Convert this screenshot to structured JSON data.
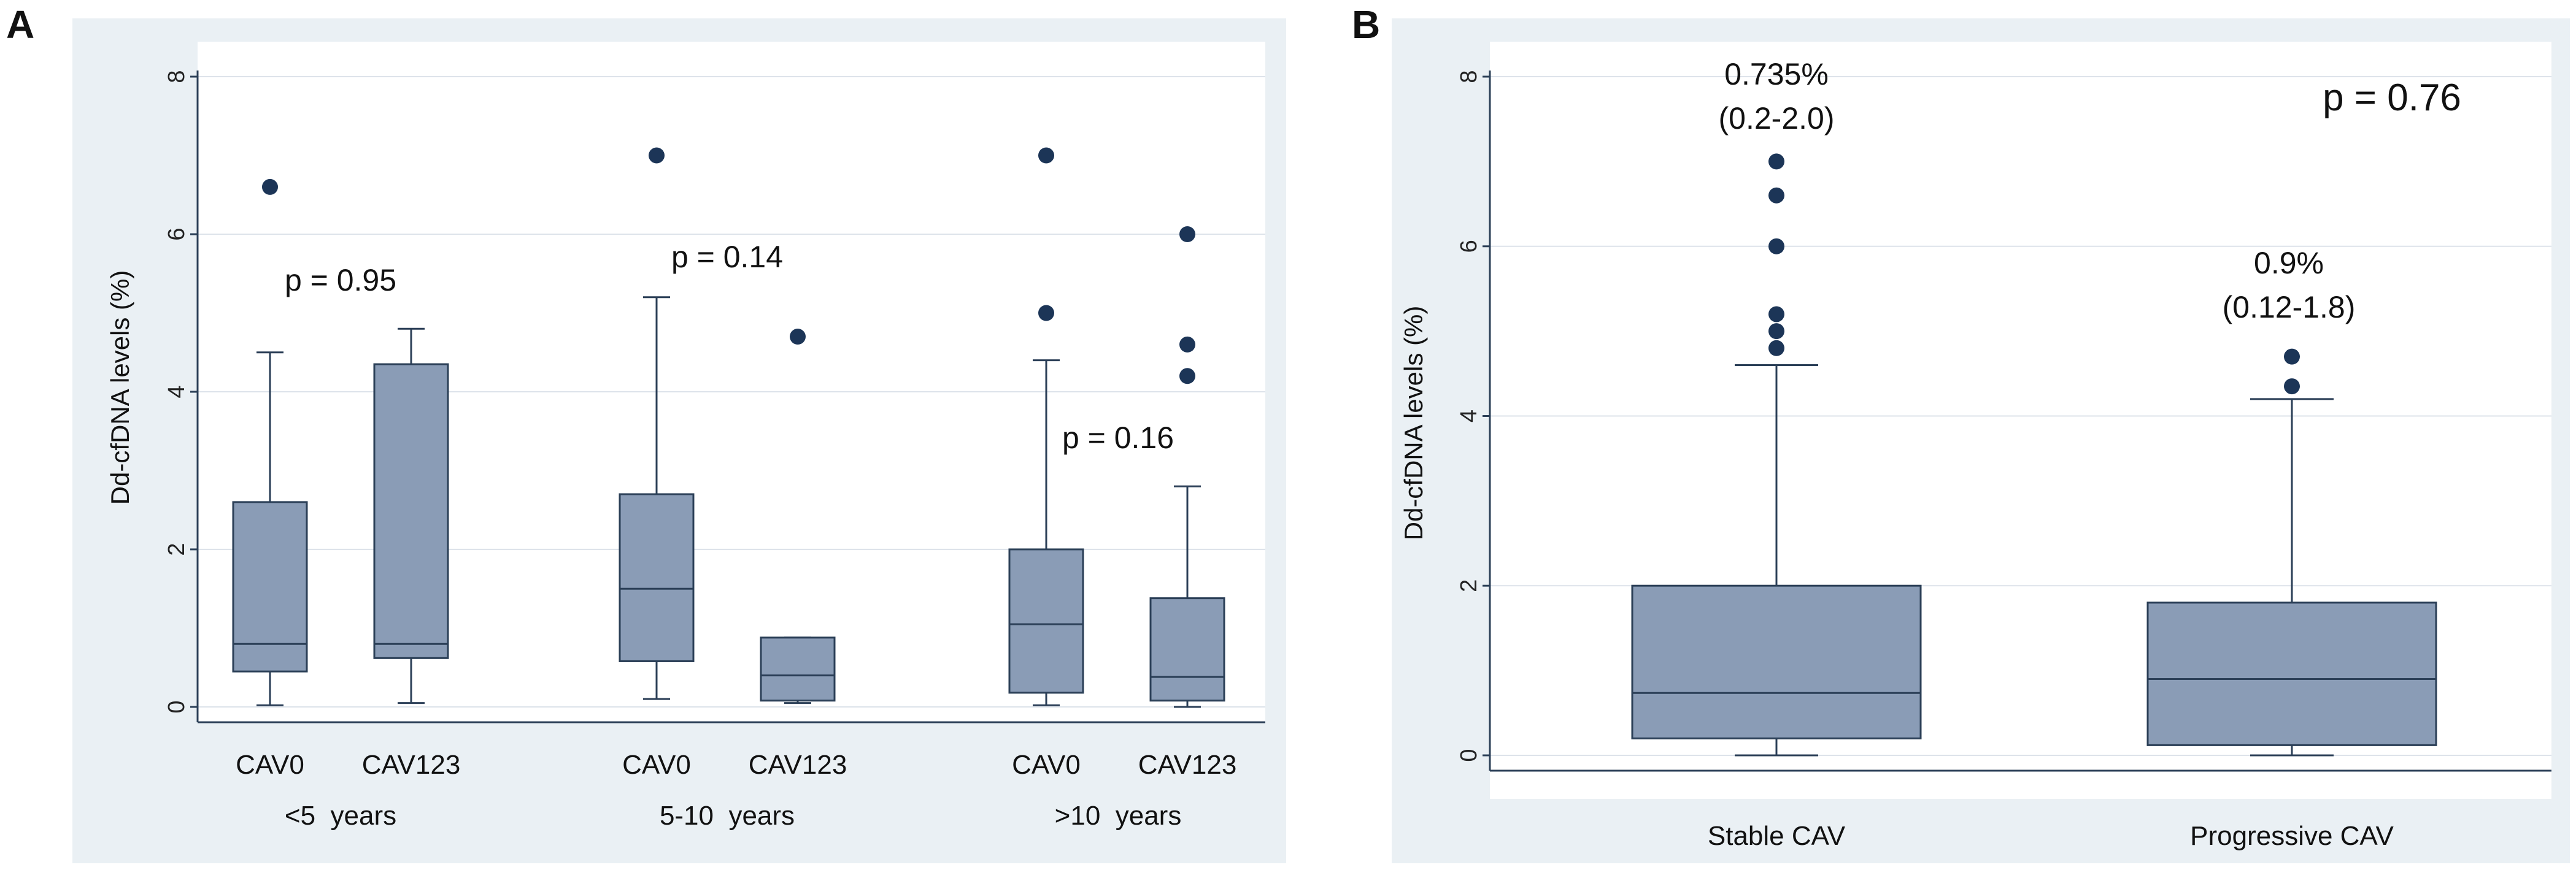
{
  "colors": {
    "box_fill": "#8a9cb6",
    "line": "#2b3f57",
    "outlier": "#1c3557",
    "outer_bg": "#eaf0f4",
    "plot_bg": "#ffffff",
    "grid": "#dde3ea"
  },
  "chart_data": [
    {
      "panel": "A",
      "type": "box",
      "ylabel": "Dd-cfDNA levels (%)",
      "ylim": [
        0,
        8
      ],
      "yticks": [
        0,
        2,
        4,
        6,
        8
      ],
      "grid": true,
      "boxes": [
        {
          "label": "CAV0",
          "group": "<5  years",
          "whisker_low": 0.02,
          "q1": 0.45,
          "median": 0.8,
          "q3": 2.6,
          "whisker_high": 4.5,
          "outliers": [
            6.6
          ]
        },
        {
          "label": "CAV123",
          "group": "<5  years",
          "whisker_low": 0.05,
          "q1": 0.62,
          "median": 0.8,
          "q3": 4.35,
          "whisker_high": 4.8,
          "outliers": []
        },
        {
          "label": "CAV0",
          "group": "5-10  years",
          "whisker_low": 0.1,
          "q1": 0.58,
          "median": 1.5,
          "q3": 2.7,
          "whisker_high": 5.2,
          "outliers": [
            7.0
          ]
        },
        {
          "label": "CAV123",
          "group": "5-10  years",
          "whisker_low": 0.05,
          "q1": 0.08,
          "median": 0.4,
          "q3": 0.88,
          "whisker_high": 0.88,
          "outliers": [
            4.7
          ]
        },
        {
          "label": "CAV0",
          "group": ">10  years",
          "whisker_low": 0.02,
          "q1": 0.18,
          "median": 1.05,
          "q3": 2.0,
          "whisker_high": 4.4,
          "outliers": [
            7.0,
            5.0
          ]
        },
        {
          "label": "CAV123",
          "group": ">10  years",
          "whisker_low": 0.0,
          "q1": 0.08,
          "median": 0.38,
          "q3": 1.38,
          "whisker_high": 2.8,
          "outliers": [
            6.0,
            4.6,
            4.2
          ]
        }
      ],
      "groups": [
        "<5  years",
        "5-10  years",
        ">10  years"
      ],
      "annotations": [
        "p = 0.95",
        "p = 0.14",
        "p = 0.16"
      ]
    },
    {
      "panel": "B",
      "type": "box",
      "ylabel": "Dd-cfDNA levels (%)",
      "ylim": [
        0,
        8
      ],
      "yticks": [
        0,
        2,
        4,
        6,
        8
      ],
      "grid": true,
      "boxes": [
        {
          "label": "Stable CAV",
          "whisker_low": 0.0,
          "q1": 0.2,
          "median": 0.735,
          "q3": 2.0,
          "whisker_high": 4.6,
          "outliers": [
            7.0,
            6.6,
            6.0,
            5.2,
            5.0,
            4.8
          ]
        },
        {
          "label": "Progressive CAV",
          "whisker_low": 0.0,
          "q1": 0.12,
          "median": 0.9,
          "q3": 1.8,
          "whisker_high": 4.2,
          "outliers": [
            4.7,
            4.35
          ]
        }
      ],
      "annotations": [
        "0.735%",
        "(0.2-2.0)",
        "0.9%",
        "(0.12-1.8)",
        "p = 0.76"
      ]
    }
  ]
}
